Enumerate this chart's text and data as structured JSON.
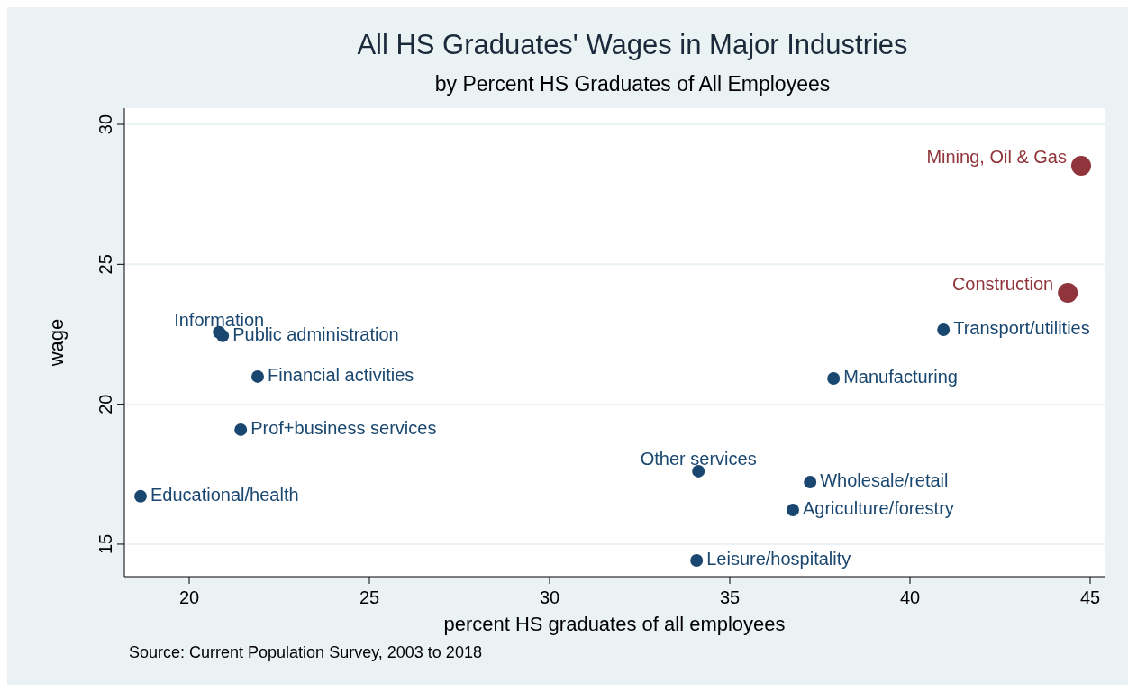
{
  "chart_data": {
    "type": "scatter",
    "title": "All HS Graduates' Wages in Major Industries",
    "subtitle": "by Percent HS Graduates of All Employees",
    "xlabel": "percent HS graduates of all employees",
    "ylabel": "wage",
    "series": [
      {
        "color": "#1a476f",
        "x": [
          40.93,
          37.88,
          20.83,
          20.93,
          21.9,
          21.43,
          18.65,
          34.13,
          37.23,
          36.75,
          34.08
        ],
        "values": [
          22.66,
          20.92,
          22.57,
          22.44,
          20.99,
          19.09,
          16.71,
          17.61,
          17.22,
          16.22,
          14.42
        ]
      },
      {
        "color": "#90353b",
        "x": [
          44.75,
          44.38
        ],
        "values": [
          28.52,
          23.98
        ]
      }
    ],
    "annotations": [
      {
        "text": "Transport/utilities",
        "x": 40.93,
        "y": 22.66
      },
      {
        "text": "Manufacturing",
        "x": 37.88,
        "y": 20.92
      },
      {
        "text": "Information",
        "x": 20.83,
        "y": 22.57
      },
      {
        "text": "Public administration",
        "x": 20.93,
        "y": 22.44
      },
      {
        "text": "Financial activities",
        "x": 21.9,
        "y": 20.99
      },
      {
        "text": "Prof+business services",
        "x": 21.43,
        "y": 19.09
      },
      {
        "text": "Educational/health",
        "x": 18.65,
        "y": 16.71
      },
      {
        "text": "Other services",
        "x": 34.13,
        "y": 17.61
      },
      {
        "text": "Wholesale/retail",
        "x": 37.23,
        "y": 17.22
      },
      {
        "text": "Agriculture/forestry",
        "x": 36.75,
        "y": 16.22
      },
      {
        "text": "Leisure/hospitality",
        "x": 34.08,
        "y": 14.42
      },
      {
        "text": "Mining, Oil & Gas",
        "x": 44.75,
        "y": 28.52
      },
      {
        "text": "Construction",
        "x": 44.38,
        "y": 23.98
      },
      "Source: Current Population Survey, 2003 to 2018"
    ],
    "xlim": [
      18.2,
      45.4
    ],
    "ylim": [
      13.84,
      30.58
    ],
    "xticks": [
      20,
      25,
      30,
      35,
      40,
      45
    ],
    "yticks": [
      15,
      20,
      25,
      30
    ],
    "grid": "y",
    "marker": "circle"
  }
}
